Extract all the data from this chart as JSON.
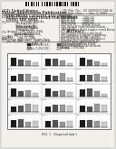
{
  "bg_color": "#e8e8e3",
  "page_color": "#f2f0eb",
  "text_color": "#2a2a2a",
  "dark": "#111111",
  "mid_gray": "#777777",
  "light_gray": "#bbbbbb",
  "header_line_color": "#555555",
  "barcode_color": "#1a1a1a",
  "chart_border": "#444444",
  "legend_items": [
    {
      "label": "Ex. 1 (Pt/CB1)",
      "color": "#1a1a1a",
      "hatch": ""
    },
    {
      "label": "Ex. 2 (Pt/CB2)",
      "color": "#555555",
      "hatch": ""
    },
    {
      "label": "Ex. 3 (Pt/CB3)",
      "color": "#999999",
      "hatch": ""
    },
    {
      "label": "Comp. 1 (Pt/CB4)",
      "color": "#cccccc",
      "hatch": ""
    }
  ],
  "n_rows": 5,
  "n_cols": 3
}
